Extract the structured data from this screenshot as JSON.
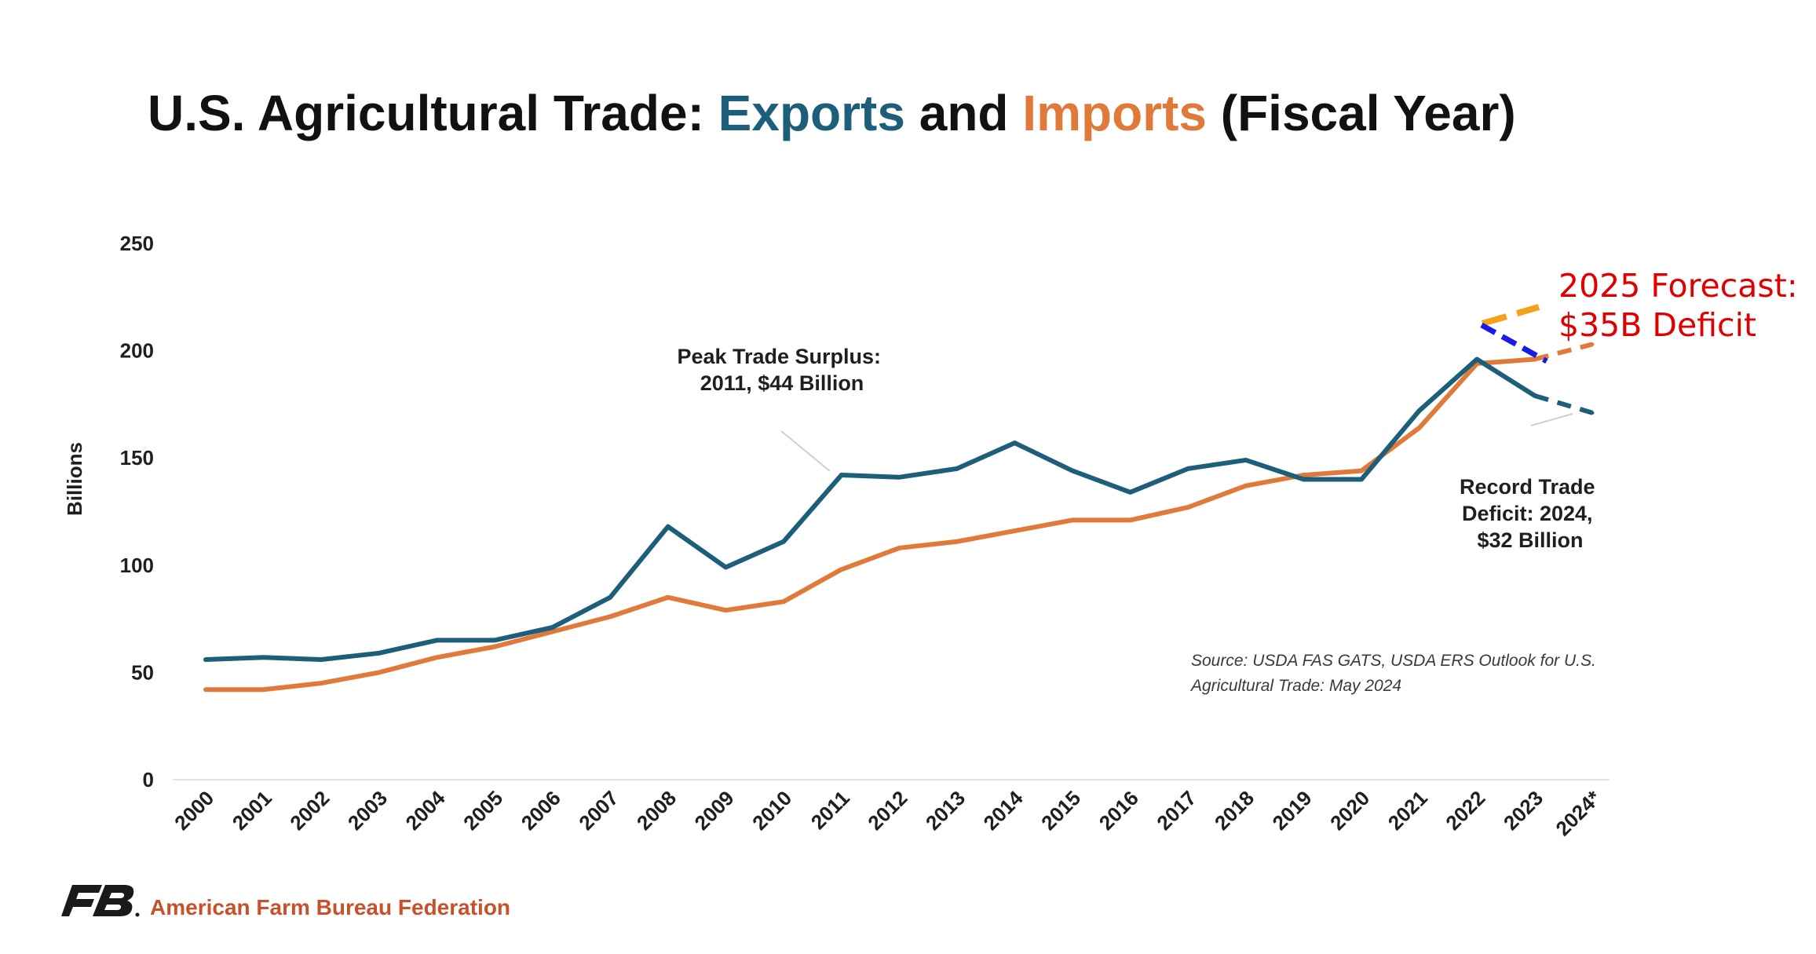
{
  "chart_data": {
    "type": "line",
    "title_parts": [
      "U.S. Agricultural Trade: ",
      "Exports",
      " and ",
      "Imports",
      " (Fiscal Year)"
    ],
    "ylabel": "Billions",
    "ylim": [
      0,
      250
    ],
    "yticks": [
      "0",
      "50",
      "100",
      "150",
      "200",
      "250"
    ],
    "categories": [
      "2000",
      "2001",
      "2002",
      "2003",
      "2004",
      "2005",
      "2006",
      "2007",
      "2008",
      "2009",
      "2010",
      "2011",
      "2012",
      "2013",
      "2014",
      "2015",
      "2016",
      "2017",
      "2018",
      "2019",
      "2020",
      "2021",
      "2022",
      "2023",
      "2024*"
    ],
    "series": [
      {
        "name": "Exports",
        "color": "#1d5e7a",
        "values": [
          56,
          57,
          56,
          59,
          65,
          65,
          71,
          85,
          118,
          99,
          111,
          142,
          141,
          145,
          157,
          144,
          134,
          145,
          149,
          140,
          140,
          172,
          196,
          179,
          171
        ]
      },
      {
        "name": "Imports",
        "color": "#e07a3a",
        "values": [
          42,
          42,
          45,
          50,
          57,
          62,
          69,
          76,
          85,
          79,
          83,
          98,
          108,
          111,
          116,
          121,
          121,
          127,
          137,
          142,
          144,
          164,
          194,
          196,
          203
        ]
      }
    ],
    "grid": false,
    "annotations": {
      "peak": [
        "Peak Trade Surplus:",
        "2011, $44 Billion"
      ],
      "record": [
        "Record Trade",
        "Deficit: 2024,",
        "$32 Billion"
      ],
      "source": [
        "Source: USDA FAS GATS, USDA ERS Outlook for U.S.",
        "Agricultural Trade: May 2024"
      ],
      "forecast": [
        "2025 Forecast:",
        "$35B Deficit"
      ]
    },
    "forecast_marks": {
      "orange_color": "#f4a21a",
      "blue_color": "#1a1ae6"
    }
  },
  "footer": {
    "organization": "American Farm Bureau Federation",
    "logo_icon": "fb-logo-icon",
    "logo_color": "#1a1a1a"
  }
}
